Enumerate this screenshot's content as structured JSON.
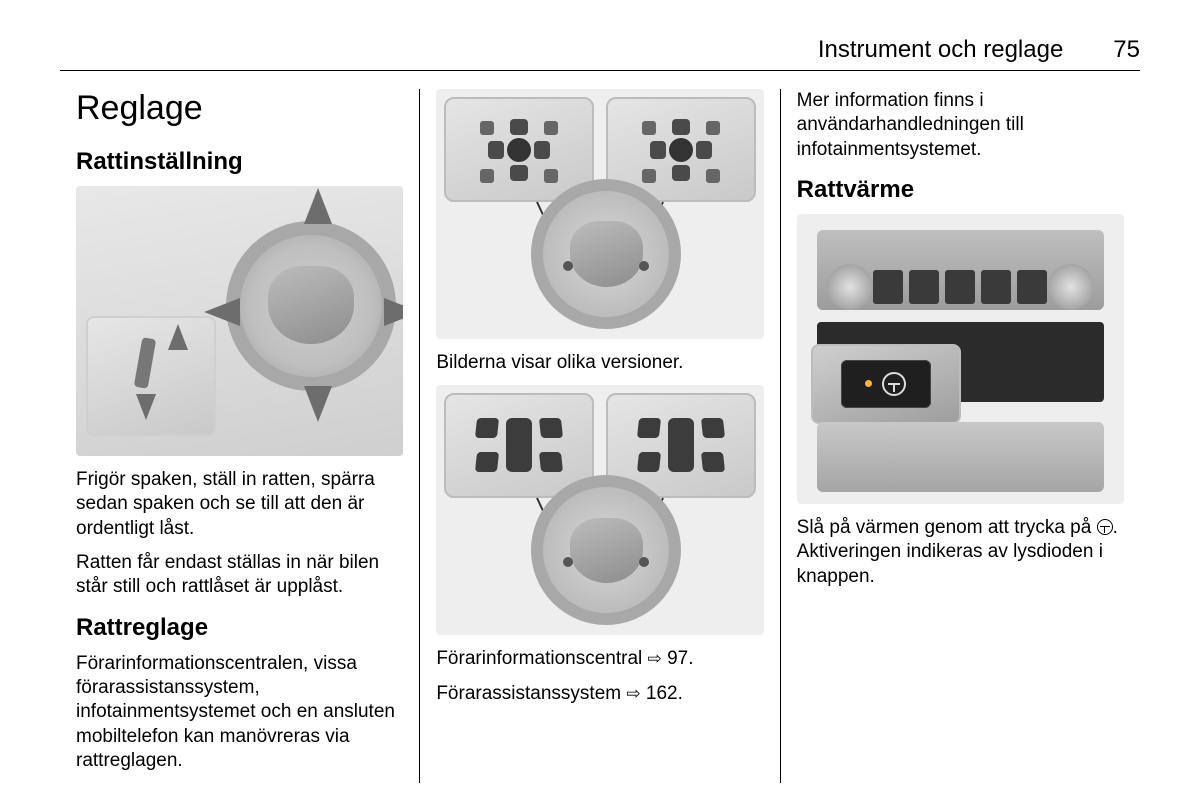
{
  "header": {
    "chapter": "Instrument och reglage",
    "page_number": "75"
  },
  "col1": {
    "h1": "Reglage",
    "h2a": "Rattinställning",
    "p1": "Frigör spaken, ställ in ratten, spärra sedan spaken och se till att den är ordentligt låst.",
    "p2": "Ratten får endast ställas in när bilen står still och rattlåset är upplåst.",
    "h2b": "Rattreglage",
    "p3": "Förarinformationscentralen, vissa förarassistanssystem, infotainmentsystemet och en ansluten mobiltelefon kan manövreras via rattreglagen."
  },
  "col2": {
    "caption1": "Bilderna visar olika versioner.",
    "ref1_text": "Förarinformationscentral ",
    "ref1_page": "97.",
    "ref2_text": "Förarassistanssystem ",
    "ref2_page": "162."
  },
  "col3": {
    "p1": "Mer information finns i användarhandledningen till infotainmentsystemet.",
    "h2": "Rattvärme",
    "p2a": "Slå på värmen genom att trycka på ",
    "p2b": ". Aktiveringen indikeras av lysdioden i knappen."
  },
  "figure_style": {
    "bg": "#eeeeee",
    "wheel_rim": "#a8a8a8",
    "wheel_hub": "#8d8d8d",
    "arrow": "#6d6d6d",
    "callout_border": "#bcbcbc",
    "button_dark": "#3c3c3c",
    "led": "#ffb14a"
  }
}
